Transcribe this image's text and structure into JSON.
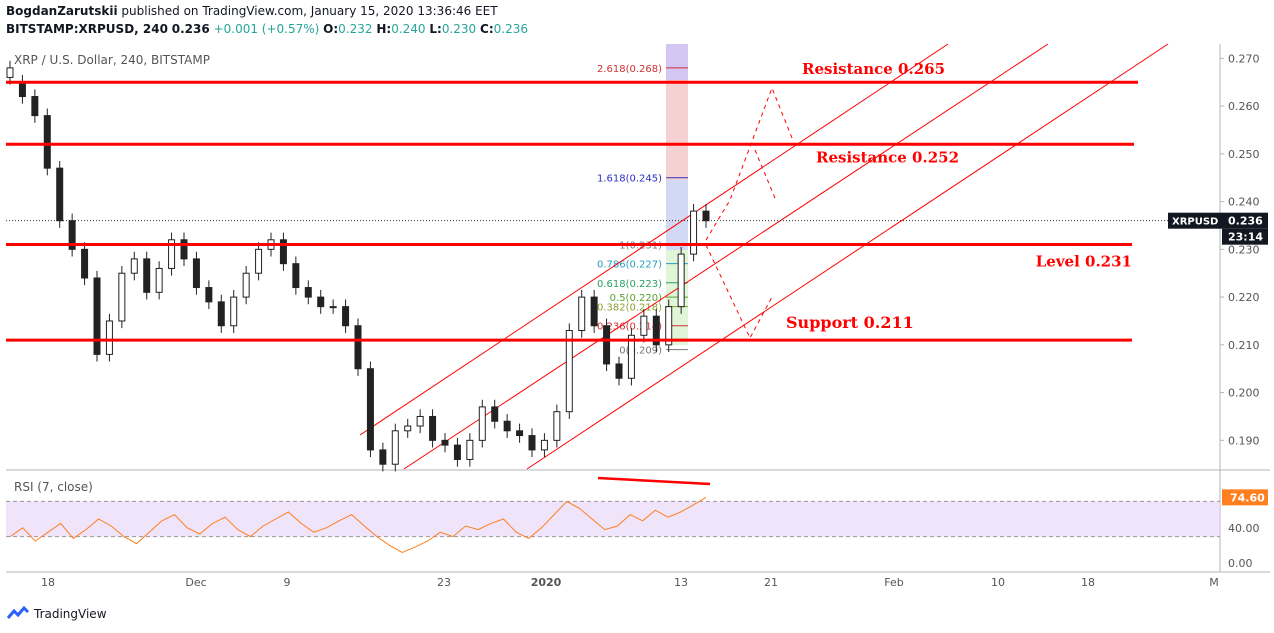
{
  "header": {
    "author": "BogdanZarutskii",
    "published_text": "published on TradingView.com, January 15, 2020 13:36:46 EET",
    "symbol": "BITSTAMP:XRPUSD, 240",
    "last": "0.236",
    "change": "+0.001 (+0.57%)",
    "o_label": "O:",
    "o": "0.232",
    "h_label": "H:",
    "h": "0.240",
    "l_label": "L:",
    "l": "0.230",
    "c_label": "C:",
    "c": "0.236"
  },
  "legend": "XRP / U.S. Dollar, 240, BITSTAMP",
  "rsi_legend": "RSI (7, close)",
  "brand": "TradingView",
  "colors": {
    "up": "#26a69a",
    "level": "#ff0000",
    "rsi": "#ff7f1f",
    "rsi_band": "#e8d9f7",
    "fib_blue": "#3030c0"
  },
  "chart_data": {
    "type": "line",
    "title": "XRP / U.S. Dollar, 240, BITSTAMP",
    "y_ticks": [
      "0.270",
      "0.260",
      "0.250",
      "0.240",
      "0.230",
      "0.220",
      "0.210",
      "0.200",
      "0.190"
    ],
    "ylim": [
      0.184,
      0.273
    ],
    "x_ticks": [
      "18",
      "Dec",
      "9",
      "23",
      "2020",
      "13",
      "21",
      "Feb",
      "10",
      "18",
      "M"
    ],
    "price_label": "XRPUSD",
    "price_value": "0.236",
    "timer": "23:14",
    "price_series": [
      [
        0.266,
        0.268
      ],
      [
        0.265,
        0.262
      ],
      [
        0.262,
        0.258
      ],
      [
        0.258,
        0.247
      ],
      [
        0.247,
        0.236
      ],
      [
        0.236,
        0.23
      ],
      [
        0.23,
        0.224
      ],
      [
        0.224,
        0.208
      ],
      [
        0.208,
        0.215
      ],
      [
        0.215,
        0.225
      ],
      [
        0.225,
        0.228
      ],
      [
        0.228,
        0.221
      ],
      [
        0.221,
        0.226
      ],
      [
        0.226,
        0.232
      ],
      [
        0.232,
        0.228
      ],
      [
        0.228,
        0.222
      ],
      [
        0.222,
        0.219
      ],
      [
        0.219,
        0.214
      ],
      [
        0.214,
        0.22
      ],
      [
        0.22,
        0.225
      ],
      [
        0.225,
        0.23
      ],
      [
        0.23,
        0.232
      ],
      [
        0.232,
        0.227
      ],
      [
        0.227,
        0.222
      ],
      [
        0.222,
        0.22
      ],
      [
        0.22,
        0.218
      ],
      [
        0.218,
        0.218
      ],
      [
        0.218,
        0.214
      ],
      [
        0.214,
        0.205
      ],
      [
        0.205,
        0.188
      ],
      [
        0.188,
        0.185
      ],
      [
        0.185,
        0.192
      ],
      [
        0.192,
        0.193
      ],
      [
        0.193,
        0.195
      ],
      [
        0.195,
        0.19
      ],
      [
        0.19,
        0.189
      ],
      [
        0.189,
        0.186
      ],
      [
        0.186,
        0.19
      ],
      [
        0.19,
        0.197
      ],
      [
        0.197,
        0.194
      ],
      [
        0.194,
        0.192
      ],
      [
        0.192,
        0.191
      ],
      [
        0.191,
        0.188
      ],
      [
        0.188,
        0.19
      ],
      [
        0.19,
        0.196
      ],
      [
        0.196,
        0.213
      ],
      [
        0.213,
        0.22
      ],
      [
        0.22,
        0.214
      ],
      [
        0.214,
        0.206
      ],
      [
        0.206,
        0.203
      ],
      [
        0.203,
        0.212
      ],
      [
        0.212,
        0.216
      ],
      [
        0.216,
        0.21
      ],
      [
        0.21,
        0.218
      ],
      [
        0.218,
        0.229
      ],
      [
        0.229,
        0.238
      ],
      [
        0.238,
        0.236
      ]
    ],
    "levels": [
      {
        "label": "Resistance 0.265",
        "value": 0.265
      },
      {
        "label": "Resistance 0.252",
        "value": 0.252
      },
      {
        "label": "Level 0.231",
        "value": 0.231
      },
      {
        "label": "Support 0.211",
        "value": 0.211
      }
    ],
    "fib_levels": [
      {
        "label": "2.618(0.268)",
        "value": 0.268
      },
      {
        "label": "1.618(0.245)",
        "value": 0.245
      },
      {
        "label": "1(0.231)",
        "value": 0.231
      },
      {
        "label": "0.786(0.227)",
        "value": 0.227
      },
      {
        "label": "0.618(0.223)",
        "value": 0.223
      },
      {
        "label": "0.5(0.220)",
        "value": 0.22
      },
      {
        "label": "0.382(0.218)",
        "value": 0.218
      },
      {
        "label": "0.236(0.214)",
        "value": 0.214
      },
      {
        "label": "0(0.209)",
        "value": 0.209
      }
    ],
    "rsi_ticks": [
      "40.00",
      "0.00"
    ],
    "rsi_value": "74.60",
    "rsi_series": [
      30,
      40,
      25,
      35,
      45,
      28,
      38,
      50,
      42,
      30,
      22,
      35,
      48,
      55,
      40,
      33,
      45,
      52,
      38,
      30,
      42,
      50,
      58,
      45,
      35,
      40,
      48,
      55,
      42,
      30,
      20,
      12,
      18,
      25,
      35,
      30,
      42,
      38,
      45,
      50,
      35,
      28,
      40,
      55,
      70,
      62,
      50,
      38,
      42,
      55,
      48,
      60,
      52,
      58,
      66,
      74.6
    ]
  }
}
